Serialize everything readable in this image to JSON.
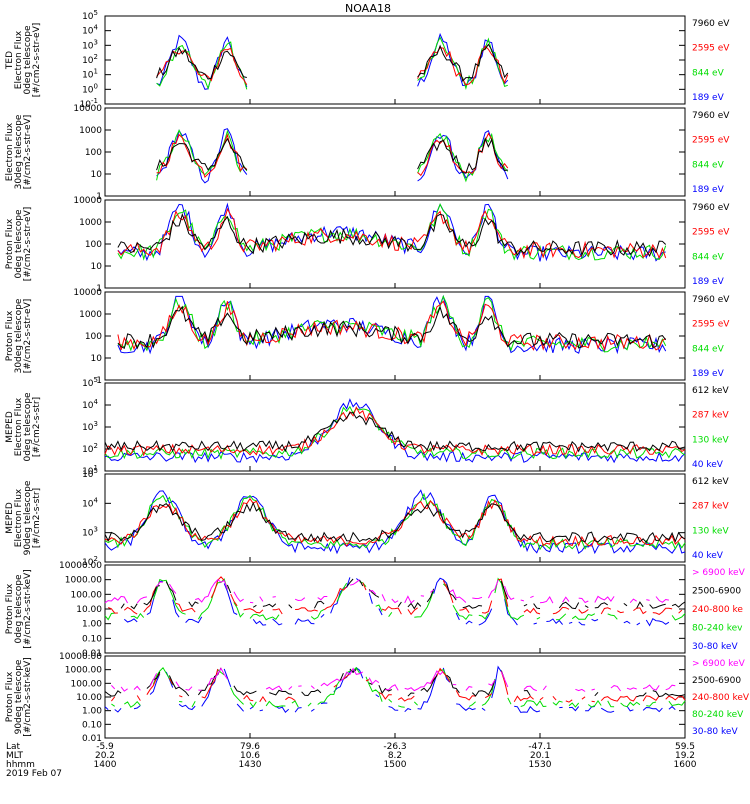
{
  "title": "NOAA18",
  "colors": {
    "black": "#000000",
    "red": "#ff0000",
    "green": "#00dd00",
    "blue": "#0000ff",
    "magenta": "#ff00ff"
  },
  "chart_data": [
    {
      "type": "line",
      "scale": "log",
      "ylabel": [
        "TED",
        "Electron Flux",
        "0deg telescope",
        "[#/cm2-s-str-eV]"
      ],
      "yticks": [
        "10^-1",
        "10^0",
        "10^1",
        "10^2",
        "10^3",
        "10^4",
        "10^5"
      ],
      "channels": [
        {
          "label": "7960 eV",
          "color": "black"
        },
        {
          "label": "2595 eV",
          "color": "red"
        },
        {
          "label": "844 eV",
          "color": "green"
        },
        {
          "label": "189 eV",
          "color": "blue"
        }
      ]
    },
    {
      "type": "line",
      "scale": "log",
      "ylabel": [
        "Electron Flux",
        "30deg telescope",
        "[#/cm2-s-str-eV]"
      ],
      "yticks": [
        "1",
        "10",
        "100",
        "1000",
        "10000"
      ],
      "channels": [
        {
          "label": "7960 eV",
          "color": "black"
        },
        {
          "label": "2595 eV",
          "color": "red"
        },
        {
          "label": "844 eV",
          "color": "green"
        },
        {
          "label": "189 eV",
          "color": "blue"
        }
      ]
    },
    {
      "type": "line",
      "scale": "log",
      "ylabel": [
        "Proton Flux",
        "0deg telescope",
        "[#/cm2-s-str-eV]"
      ],
      "yticks": [
        "1",
        "10",
        "100",
        "1000",
        "10000"
      ],
      "channels": [
        {
          "label": "7960 eV",
          "color": "black"
        },
        {
          "label": "2595 eV",
          "color": "red"
        },
        {
          "label": "844 eV",
          "color": "green"
        },
        {
          "label": "189 eV",
          "color": "blue"
        }
      ]
    },
    {
      "type": "line",
      "scale": "log",
      "ylabel": [
        "Proton Flux",
        "30deg telescope",
        "[#/cm2-s-str-eV]"
      ],
      "yticks": [
        "1",
        "10",
        "100",
        "1000",
        "10000"
      ],
      "channels": [
        {
          "label": "7960 eV",
          "color": "black"
        },
        {
          "label": "2595 eV",
          "color": "red"
        },
        {
          "label": "844 eV",
          "color": "green"
        },
        {
          "label": "189 eV",
          "color": "blue"
        }
      ]
    },
    {
      "type": "line",
      "scale": "log",
      "ylabel": [
        "MEPED",
        "Electron Flux",
        "0deg telescope",
        "[#/cm2-s-str]"
      ],
      "yticks": [
        "10^1",
        "10^2",
        "10^3",
        "10^4",
        "10^5"
      ],
      "channels": [
        {
          "label": "612 keV",
          "color": "black"
        },
        {
          "label": "287 keV",
          "color": "red"
        },
        {
          "label": "130 keV",
          "color": "green"
        },
        {
          "label": "40 keV",
          "color": "blue"
        }
      ]
    },
    {
      "type": "line",
      "scale": "log",
      "ylabel": [
        "MEPED",
        "Electron Flux",
        "90deg telescope",
        "[#/cm2-s-str]"
      ],
      "yticks": [
        "10^2",
        "10^3",
        "10^4",
        "10^5"
      ],
      "channels": [
        {
          "label": "612 keV",
          "color": "black"
        },
        {
          "label": "287 keV",
          "color": "red"
        },
        {
          "label": "130 keV",
          "color": "green"
        },
        {
          "label": "40 keV",
          "color": "blue"
        }
      ]
    },
    {
      "type": "line",
      "scale": "log",
      "ylabel": [
        "Proton Flux",
        "0deg telescope",
        "[#/cm2-s-str-keV]"
      ],
      "yticks": [
        "0.01",
        "0.10",
        "1.00",
        "10.00",
        "100.00",
        "1000.00",
        "10000.00"
      ],
      "channels": [
        {
          "label": "> 6900 keV",
          "color": "magenta"
        },
        {
          "label": "2500-6900",
          "color": "black"
        },
        {
          "label": "240-800 ke",
          "color": "red"
        },
        {
          "label": "80-240 kev",
          "color": "green"
        },
        {
          "label": "30-80 keV",
          "color": "blue"
        }
      ]
    },
    {
      "type": "line",
      "scale": "log",
      "ylabel": [
        "Proton Flux",
        "90deg telescope",
        "[#/cm2-s-str-keV]"
      ],
      "yticks": [
        "0.01",
        "0.10",
        "1.00",
        "10.00",
        "100.00",
        "1000.00",
        "10000.00"
      ],
      "channels": [
        {
          "label": "> 6900 keV",
          "color": "magenta"
        },
        {
          "label": "2500-6900",
          "color": "black"
        },
        {
          "label": "240-800 keV",
          "color": "red"
        },
        {
          "label": "80-240 keV",
          "color": "green"
        },
        {
          "label": "30-80 keV",
          "color": "blue"
        }
      ]
    }
  ],
  "x_axis": {
    "row_labels": [
      "Lat",
      "MLT",
      "hhmm"
    ],
    "ticks": [
      {
        "lat": "-5.9",
        "mlt": "20.2",
        "hhmm": "1400"
      },
      {
        "lat": "79.6",
        "mlt": "10.6",
        "hhmm": "1430"
      },
      {
        "lat": "-26.3",
        "mlt": "8.2",
        "hhmm": "1500"
      },
      {
        "lat": "-47.1",
        "mlt": "20.1",
        "hhmm": "1530"
      },
      {
        "lat": "59.5",
        "mlt": "19.2",
        "hhmm": "1600"
      }
    ],
    "date": "2019 Feb 07"
  }
}
